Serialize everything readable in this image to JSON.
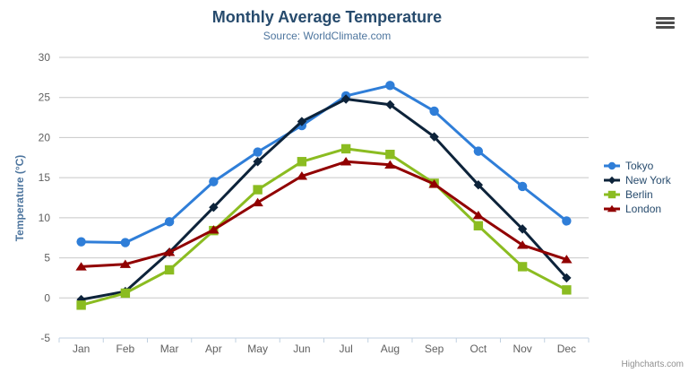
{
  "chart_data": {
    "type": "line",
    "title": "Monthly Average Temperature",
    "subtitle": "Source: WorldClimate.com",
    "ylabel": "Temperature (°C)",
    "credits": "Highcharts.com",
    "categories": [
      "Jan",
      "Feb",
      "Mar",
      "Apr",
      "May",
      "Jun",
      "Jul",
      "Aug",
      "Sep",
      "Oct",
      "Nov",
      "Dec"
    ],
    "ylim": [
      -5,
      30
    ],
    "yticks": [
      -5,
      0,
      5,
      10,
      15,
      20,
      25,
      30
    ],
    "grid": true,
    "legend_position": "right",
    "series": [
      {
        "name": "Tokyo",
        "color": "#2f7ed8",
        "marker": "circle",
        "values": [
          7.0,
          6.9,
          9.5,
          14.5,
          18.2,
          21.5,
          25.2,
          26.5,
          23.3,
          18.3,
          13.9,
          9.6
        ]
      },
      {
        "name": "New York",
        "color": "#0d233a",
        "marker": "diamond",
        "values": [
          -0.2,
          0.8,
          5.7,
          11.3,
          17.0,
          22.0,
          24.8,
          24.1,
          20.1,
          14.1,
          8.6,
          2.5
        ]
      },
      {
        "name": "Berlin",
        "color": "#8bbc21",
        "marker": "square",
        "values": [
          -0.9,
          0.6,
          3.5,
          8.4,
          13.5,
          17.0,
          18.6,
          17.9,
          14.3,
          9.0,
          3.9,
          1.0
        ]
      },
      {
        "name": "London",
        "color": "#910000",
        "marker": "triangle",
        "values": [
          3.9,
          4.2,
          5.7,
          8.5,
          11.9,
          15.2,
          17.0,
          16.6,
          14.2,
          10.3,
          6.6,
          4.8
        ]
      }
    ]
  },
  "theme": {
    "title_color": "#274b6d",
    "subtitle_color": "#4d759e",
    "axis_title_color": "#4d759e",
    "tick_label_color": "#606060",
    "grid_color": "#c8c8c8",
    "axis_line_color": "#c0d0e0",
    "legend_text_color": "#274b6d",
    "export_icon_color": "#4d4d4d",
    "credits_color": "#909090"
  },
  "icons": {
    "export_menu": "hamburger-icon"
  }
}
